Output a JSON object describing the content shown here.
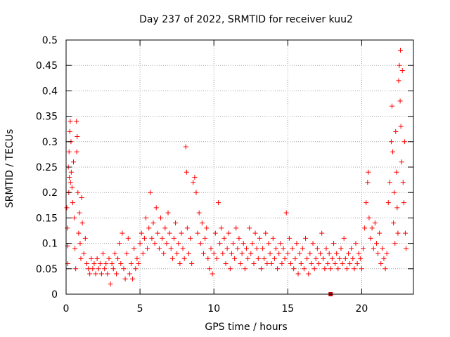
{
  "chart_data": {
    "type": "scatter",
    "title": "Day 237 of 2022, SRMTID for receiver kuu2",
    "xlabel": "GPS time / hours",
    "ylabel": "SRMTID / TECUs",
    "xlim": [
      0,
      23.5
    ],
    "ylim": [
      0,
      0.5
    ],
    "xticks": [
      0,
      5,
      10,
      15,
      20
    ],
    "xtick_labels": [
      "0",
      "5",
      "10",
      "15",
      "20"
    ],
    "yticks": [
      0,
      0.05,
      0.1,
      0.15,
      0.2,
      0.25,
      0.3,
      0.35,
      0.4,
      0.45,
      0.5
    ],
    "ytick_labels": [
      "0",
      "0.05",
      "0.1",
      "0.15",
      "0.2",
      "0.25",
      "0.3",
      "0.35",
      "0.4",
      "0.45",
      "0.5"
    ],
    "grid": true,
    "marker": "plus",
    "marker_color": "#ff0000",
    "highlight_point": {
      "x": 17.9,
      "y": 0.0,
      "marker": "square",
      "color": "#cc0000"
    },
    "series": [
      {
        "name": "SRMTID",
        "color": "#ff0000",
        "points": [
          [
            0.05,
            0.17
          ],
          [
            0.08,
            0.13
          ],
          [
            0.1,
            0.095
          ],
          [
            0.12,
            0.06
          ],
          [
            0.15,
            0.25
          ],
          [
            0.18,
            0.2
          ],
          [
            0.2,
            0.28
          ],
          [
            0.22,
            0.23
          ],
          [
            0.25,
            0.32
          ],
          [
            0.28,
            0.34
          ],
          [
            0.3,
            0.22
          ],
          [
            0.33,
            0.3
          ],
          [
            0.35,
            0.24
          ],
          [
            0.4,
            0.21
          ],
          [
            0.45,
            0.18
          ],
          [
            0.5,
            0.26
          ],
          [
            0.55,
            0.15
          ],
          [
            0.6,
            0.09
          ],
          [
            0.65,
            0.05
          ],
          [
            0.7,
            0.34
          ],
          [
            0.72,
            0.28
          ],
          [
            0.75,
            0.31
          ],
          [
            0.8,
            0.2
          ],
          [
            0.85,
            0.12
          ],
          [
            0.9,
            0.16
          ],
          [
            0.95,
            0.1
          ],
          [
            1.0,
            0.07
          ],
          [
            1.05,
            0.19
          ],
          [
            1.1,
            0.14
          ],
          [
            1.2,
            0.08
          ],
          [
            1.3,
            0.11
          ],
          [
            1.4,
            0.06
          ],
          [
            1.5,
            0.05
          ],
          [
            1.6,
            0.04
          ],
          [
            1.7,
            0.07
          ],
          [
            1.8,
            0.05
          ],
          [
            1.9,
            0.06
          ],
          [
            2.0,
            0.04
          ],
          [
            2.1,
            0.07
          ],
          [
            2.2,
            0.05
          ],
          [
            2.3,
            0.06
          ],
          [
            2.4,
            0.04
          ],
          [
            2.5,
            0.08
          ],
          [
            2.6,
            0.05
          ],
          [
            2.7,
            0.06
          ],
          [
            2.8,
            0.04
          ],
          [
            2.9,
            0.07
          ],
          [
            3.0,
            0.02
          ],
          [
            3.1,
            0.06
          ],
          [
            3.2,
            0.05
          ],
          [
            3.3,
            0.08
          ],
          [
            3.4,
            0.04
          ],
          [
            3.5,
            0.07
          ],
          [
            3.6,
            0.1
          ],
          [
            3.7,
            0.06
          ],
          [
            3.8,
            0.12
          ],
          [
            3.9,
            0.05
          ],
          [
            4.0,
            0.03
          ],
          [
            4.1,
            0.08
          ],
          [
            4.2,
            0.11
          ],
          [
            4.3,
            0.04
          ],
          [
            4.4,
            0.06
          ],
          [
            4.5,
            0.03
          ],
          [
            4.6,
            0.09
          ],
          [
            4.7,
            0.05
          ],
          [
            4.8,
            0.07
          ],
          [
            4.9,
            0.06
          ],
          [
            5.0,
            0.1
          ],
          [
            5.1,
            0.12
          ],
          [
            5.2,
            0.08
          ],
          [
            5.3,
            0.11
          ],
          [
            5.4,
            0.15
          ],
          [
            5.5,
            0.09
          ],
          [
            5.6,
            0.13
          ],
          [
            5.7,
            0.2
          ],
          [
            5.8,
            0.11
          ],
          [
            5.9,
            0.14
          ],
          [
            6.0,
            0.1
          ],
          [
            6.1,
            0.17
          ],
          [
            6.2,
            0.12
          ],
          [
            6.3,
            0.09
          ],
          [
            6.4,
            0.15
          ],
          [
            6.5,
            0.11
          ],
          [
            6.6,
            0.08
          ],
          [
            6.7,
            0.13
          ],
          [
            6.8,
            0.1
          ],
          [
            6.9,
            0.16
          ],
          [
            7.0,
            0.12
          ],
          [
            7.1,
            0.09
          ],
          [
            7.2,
            0.07
          ],
          [
            7.3,
            0.11
          ],
          [
            7.4,
            0.14
          ],
          [
            7.5,
            0.08
          ],
          [
            7.6,
            0.1
          ],
          [
            7.7,
            0.06
          ],
          [
            7.8,
            0.12
          ],
          [
            7.9,
            0.09
          ],
          [
            8.0,
            0.07
          ],
          [
            8.1,
            0.29
          ],
          [
            8.15,
            0.24
          ],
          [
            8.2,
            0.13
          ],
          [
            8.3,
            0.08
          ],
          [
            8.4,
            0.11
          ],
          [
            8.5,
            0.06
          ],
          [
            8.6,
            0.22
          ],
          [
            8.7,
            0.23
          ],
          [
            8.8,
            0.2
          ],
          [
            8.9,
            0.12
          ],
          [
            9.0,
            0.16
          ],
          [
            9.1,
            0.1
          ],
          [
            9.2,
            0.14
          ],
          [
            9.3,
            0.08
          ],
          [
            9.4,
            0.11
          ],
          [
            9.5,
            0.13
          ],
          [
            9.6,
            0.07
          ],
          [
            9.7,
            0.05
          ],
          [
            9.8,
            0.09
          ],
          [
            9.9,
            0.04
          ],
          [
            10.0,
            0.08
          ],
          [
            10.1,
            0.12
          ],
          [
            10.2,
            0.07
          ],
          [
            10.3,
            0.18
          ],
          [
            10.4,
            0.1
          ],
          [
            10.5,
            0.13
          ],
          [
            10.6,
            0.08
          ],
          [
            10.7,
            0.11
          ],
          [
            10.8,
            0.06
          ],
          [
            10.9,
            0.09
          ],
          [
            11.0,
            0.12
          ],
          [
            11.1,
            0.05
          ],
          [
            11.2,
            0.08
          ],
          [
            11.3,
            0.1
          ],
          [
            11.4,
            0.07
          ],
          [
            11.5,
            0.13
          ],
          [
            11.6,
            0.09
          ],
          [
            11.7,
            0.11
          ],
          [
            11.8,
            0.06
          ],
          [
            11.9,
            0.08
          ],
          [
            12.0,
            0.1
          ],
          [
            12.1,
            0.05
          ],
          [
            12.2,
            0.09
          ],
          [
            12.3,
            0.07
          ],
          [
            12.4,
            0.13
          ],
          [
            12.5,
            0.08
          ],
          [
            12.6,
            0.1
          ],
          [
            12.7,
            0.06
          ],
          [
            12.8,
            0.12
          ],
          [
            12.9,
            0.09
          ],
          [
            13.0,
            0.07
          ],
          [
            13.1,
            0.11
          ],
          [
            13.2,
            0.05
          ],
          [
            13.3,
            0.09
          ],
          [
            13.4,
            0.07
          ],
          [
            13.5,
            0.12
          ],
          [
            13.6,
            0.06
          ],
          [
            13.7,
            0.1
          ],
          [
            13.8,
            0.08
          ],
          [
            13.9,
            0.06
          ],
          [
            14.0,
            0.11
          ],
          [
            14.1,
            0.07
          ],
          [
            14.2,
            0.09
          ],
          [
            14.3,
            0.05
          ],
          [
            14.4,
            0.08
          ],
          [
            14.5,
            0.1
          ],
          [
            14.6,
            0.06
          ],
          [
            14.7,
            0.09
          ],
          [
            14.8,
            0.07
          ],
          [
            14.9,
            0.16
          ],
          [
            15.0,
            0.08
          ],
          [
            15.1,
            0.11
          ],
          [
            15.2,
            0.06
          ],
          [
            15.3,
            0.09
          ],
          [
            15.4,
            0.05
          ],
          [
            15.5,
            0.07
          ],
          [
            15.6,
            0.1
          ],
          [
            15.7,
            0.04
          ],
          [
            15.8,
            0.08
          ],
          [
            15.9,
            0.06
          ],
          [
            16.0,
            0.09
          ],
          [
            16.1,
            0.05
          ],
          [
            16.2,
            0.11
          ],
          [
            16.3,
            0.07
          ],
          [
            16.4,
            0.04
          ],
          [
            16.5,
            0.08
          ],
          [
            16.6,
            0.06
          ],
          [
            16.7,
            0.1
          ],
          [
            16.8,
            0.05
          ],
          [
            16.9,
            0.07
          ],
          [
            17.0,
            0.09
          ],
          [
            17.1,
            0.06
          ],
          [
            17.2,
            0.08
          ],
          [
            17.3,
            0.12
          ],
          [
            17.4,
            0.07
          ],
          [
            17.5,
            0.05
          ],
          [
            17.6,
            0.09
          ],
          [
            17.7,
            0.06
          ],
          [
            17.8,
            0.08
          ],
          [
            17.9,
            0.05
          ],
          [
            18.0,
            0.07
          ],
          [
            18.1,
            0.1
          ],
          [
            18.2,
            0.06
          ],
          [
            18.3,
            0.08
          ],
          [
            18.4,
            0.05
          ],
          [
            18.5,
            0.07
          ],
          [
            18.6,
            0.09
          ],
          [
            18.7,
            0.06
          ],
          [
            18.8,
            0.11
          ],
          [
            18.9,
            0.07
          ],
          [
            19.0,
            0.05
          ],
          [
            19.1,
            0.08
          ],
          [
            19.2,
            0.06
          ],
          [
            19.3,
            0.09
          ],
          [
            19.4,
            0.07
          ],
          [
            19.5,
            0.05
          ],
          [
            19.6,
            0.1
          ],
          [
            19.7,
            0.06
          ],
          [
            19.8,
            0.08
          ],
          [
            19.9,
            0.07
          ],
          [
            20.0,
            0.05
          ],
          [
            20.1,
            0.09
          ],
          [
            20.2,
            0.13
          ],
          [
            20.3,
            0.18
          ],
          [
            20.4,
            0.22
          ],
          [
            20.45,
            0.24
          ],
          [
            20.5,
            0.15
          ],
          [
            20.6,
            0.11
          ],
          [
            20.7,
            0.13
          ],
          [
            20.8,
            0.09
          ],
          [
            20.9,
            0.14
          ],
          [
            21.0,
            0.1
          ],
          [
            21.1,
            0.08
          ],
          [
            21.2,
            0.12
          ],
          [
            21.3,
            0.06
          ],
          [
            21.4,
            0.09
          ],
          [
            21.5,
            0.07
          ],
          [
            21.6,
            0.05
          ],
          [
            21.7,
            0.08
          ],
          [
            21.8,
            0.18
          ],
          [
            21.9,
            0.22
          ],
          [
            22.0,
            0.3
          ],
          [
            22.05,
            0.37
          ],
          [
            22.1,
            0.28
          ],
          [
            22.15,
            0.14
          ],
          [
            22.2,
            0.2
          ],
          [
            22.25,
            0.1
          ],
          [
            22.3,
            0.32
          ],
          [
            22.35,
            0.24
          ],
          [
            22.4,
            0.17
          ],
          [
            22.45,
            0.12
          ],
          [
            22.5,
            0.42
          ],
          [
            22.55,
            0.45
          ],
          [
            22.6,
            0.38
          ],
          [
            22.62,
            0.48
          ],
          [
            22.65,
            0.33
          ],
          [
            22.7,
            0.26
          ],
          [
            22.75,
            0.44
          ],
          [
            22.8,
            0.22
          ],
          [
            22.85,
            0.18
          ],
          [
            22.9,
            0.3
          ],
          [
            22.95,
            0.12
          ],
          [
            23.0,
            0.09
          ]
        ]
      }
    ]
  }
}
